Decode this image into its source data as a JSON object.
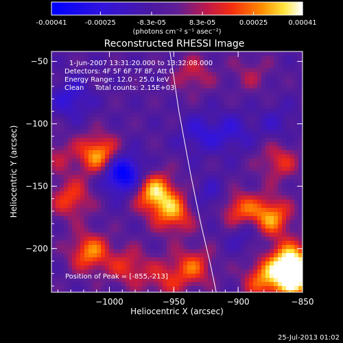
{
  "colorbar": {
    "tick_labels": [
      "-0.00041",
      "-0.00025",
      "-8.3e-05",
      "8.3e-05",
      "0.00025",
      "0.00041"
    ],
    "tick_values": [
      -0.00041,
      -0.00025,
      -8.3e-05,
      8.3e-05,
      0.00025,
      0.00041
    ],
    "range": [
      -0.00041,
      0.00041
    ],
    "units": "(photons cm⁻² s⁻¹ asec⁻²)"
  },
  "chart_data": {
    "type": "heatmap",
    "title": "Reconstructed RHESSI Image",
    "xlabel": "Heliocentric X (arcsec)",
    "ylabel": "Heliocentric Y (arcsec)",
    "xlim": [
      -1045,
      -850
    ],
    "ylim": [
      -235,
      -42
    ],
    "x_ticks": [
      -1000,
      -950,
      -900,
      -850
    ],
    "y_ticks": [
      -200,
      -150,
      -100,
      -50
    ],
    "x_tick_labels": [
      "−1000",
      "−950",
      "−900",
      "−850"
    ],
    "y_tick_labels": [
      "−200",
      "−150",
      "−100",
      "−50"
    ],
    "colormap": "blue-purple-red-yellow-white",
    "limb_curve": [
      [
        -953,
        -42
      ],
      [
        -946,
        -90
      ],
      [
        -937,
        -140
      ],
      [
        -929,
        -180
      ],
      [
        -921,
        -215
      ],
      [
        -917,
        -235
      ]
    ],
    "annotations": [
      "1-Jun-2007 13:31:20.000 to 13:32:08.000",
      "Detectors: 4F 5F 6F 7F 8F, Att 0",
      "Energy Range: 12.0 - 25.0 keV",
      "Clean     Total counts: 2.15E+03"
    ],
    "peak_label": "Position of Peak = [-855,-213]",
    "blobs": [
      {
        "x": -1008,
        "y": -125,
        "v": 0.000375
      },
      {
        "x": -1030,
        "y": -160,
        "v": 0.00024
      },
      {
        "x": -965,
        "y": -155,
        "v": 0.00039
      },
      {
        "x": -950,
        "y": -172,
        "v": 0.0003
      },
      {
        "x": -1015,
        "y": -203,
        "v": 0.00031
      },
      {
        "x": -985,
        "y": -215,
        "v": 0.0002
      },
      {
        "x": -957,
        "y": -225,
        "v": 0.00017
      },
      {
        "x": -935,
        "y": -60,
        "v": 0.00016
      },
      {
        "x": -890,
        "y": -60,
        "v": 0.00011
      },
      {
        "x": -935,
        "y": -215,
        "v": 0.00025
      },
      {
        "x": -900,
        "y": -170,
        "v": 0.00031
      },
      {
        "x": -875,
        "y": -175,
        "v": 0.00035
      },
      {
        "x": -868,
        "y": -130,
        "v": 0.0002
      },
      {
        "x": -860,
        "y": -210,
        "v": 0.0004
      },
      {
        "x": -880,
        "y": -225,
        "v": 0.00029
      },
      {
        "x": -855,
        "y": -225,
        "v": 0.00041
      },
      {
        "x": -1040,
        "y": -125,
        "v": 0.00012
      },
      {
        "x": -990,
        "y": -140,
        "v": -0.00041
      },
      {
        "x": -1030,
        "y": -80,
        "v": -0.00018
      },
      {
        "x": -930,
        "y": -108,
        "v": -0.00016
      },
      {
        "x": -905,
        "y": -107,
        "v": -0.00015
      },
      {
        "x": -920,
        "y": -160,
        "v": -0.00014
      },
      {
        "x": -895,
        "y": -185,
        "v": -0.00017
      },
      {
        "x": -870,
        "y": -100,
        "v": -0.0001
      }
    ]
  },
  "footer": {
    "timestamp": "25-Jul-2013 01:02"
  }
}
